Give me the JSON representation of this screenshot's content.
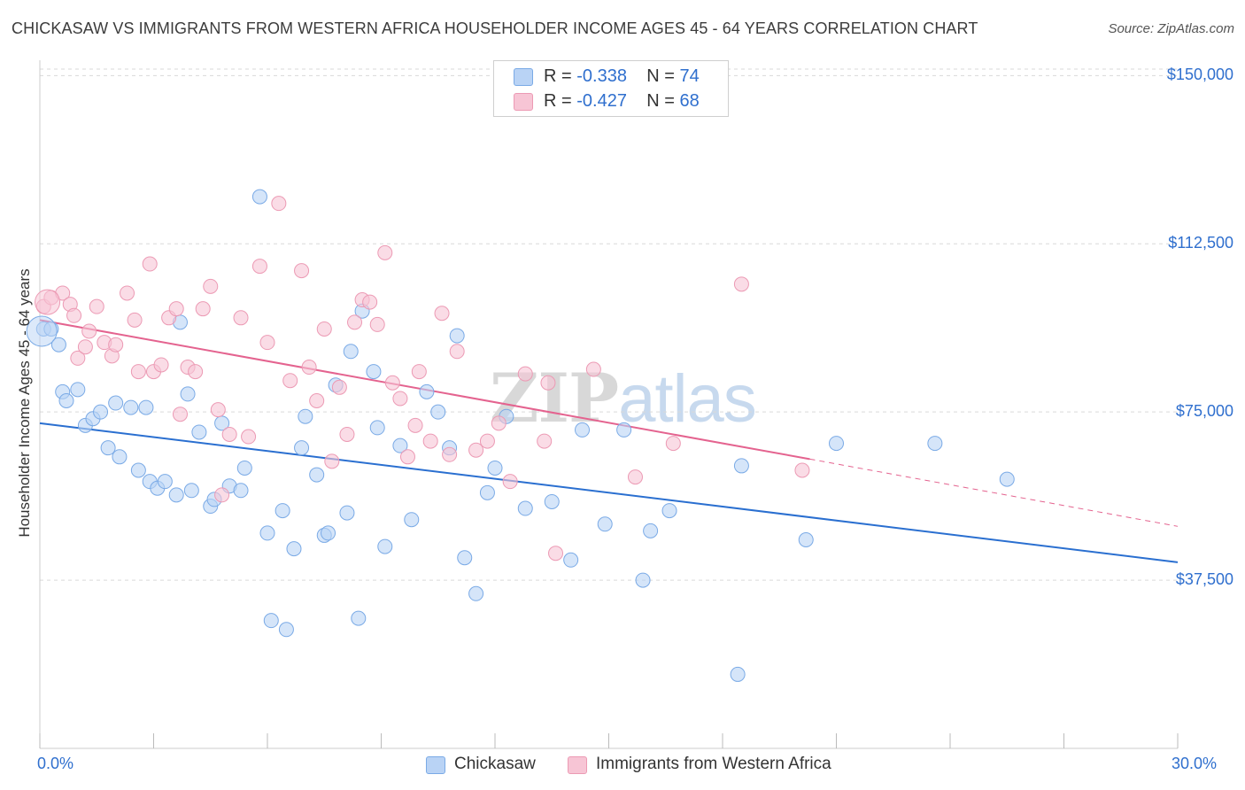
{
  "header": {
    "title": "CHICKASAW VS IMMIGRANTS FROM WESTERN AFRICA HOUSEHOLDER INCOME AGES 45 - 64 YEARS CORRELATION CHART",
    "source": "Source: ZipAtlas.com"
  },
  "watermark": {
    "zip": "ZIP",
    "atlas": "atlas"
  },
  "legend": {
    "series1": {
      "r_label": "R = ",
      "r_value": "-0.338",
      "n_label": "N = ",
      "n_value": "74"
    },
    "series2": {
      "r_label": "R = ",
      "r_value": "-0.427",
      "n_label": "N = ",
      "n_value": "68"
    }
  },
  "colors": {
    "chickasaw_fill": "#b9d3f5",
    "chickasaw_stroke": "#7aaae6",
    "chickasaw_line": "#2a6fd0",
    "immigrants_fill": "#f7c5d5",
    "immigrants_stroke": "#ec9ab4",
    "immigrants_line": "#e4638f",
    "axis_label": "#2f6fce",
    "grid": "#d9d9d9"
  },
  "chart_data": {
    "type": "scatter",
    "title": "CHICKASAW VS IMMIGRANTS FROM WESTERN AFRICA HOUSEHOLDER INCOME AGES 45 - 64 YEARS CORRELATION CHART",
    "xlabel": "",
    "ylabel": "Householder Income Ages 45 - 64 years",
    "xlim": [
      0,
      30
    ],
    "ylim": [
      0,
      155000
    ],
    "x_tick_labels": [
      "0.0%",
      "30.0%"
    ],
    "y_ticks": [
      37500,
      75000,
      112500,
      150000
    ],
    "y_tick_labels": [
      "$37,500",
      "$75,000",
      "$112,500",
      "$150,000"
    ],
    "grid": true,
    "legend_position": "top-center",
    "series": [
      {
        "name": "Chickasaw",
        "trend": {
          "x": [
            0,
            30
          ],
          "y": [
            72500,
            41500
          ]
        },
        "points": [
          [
            0.1,
            93500
          ],
          [
            0.3,
            93500
          ],
          [
            0.5,
            90000
          ],
          [
            0.6,
            79500
          ],
          [
            0.7,
            77500
          ],
          [
            1.0,
            80000
          ],
          [
            1.2,
            72000
          ],
          [
            1.4,
            73500
          ],
          [
            1.6,
            75000
          ],
          [
            1.8,
            67000
          ],
          [
            2.0,
            77000
          ],
          [
            2.1,
            65000
          ],
          [
            2.4,
            76000
          ],
          [
            2.6,
            62000
          ],
          [
            2.8,
            76000
          ],
          [
            2.9,
            59500
          ],
          [
            3.1,
            58000
          ],
          [
            3.3,
            59500
          ],
          [
            3.6,
            56500
          ],
          [
            3.7,
            95000
          ],
          [
            3.9,
            79000
          ],
          [
            4.0,
            57500
          ],
          [
            4.2,
            70500
          ],
          [
            4.5,
            54000
          ],
          [
            4.6,
            55500
          ],
          [
            4.8,
            72500
          ],
          [
            5.0,
            58500
          ],
          [
            5.3,
            57500
          ],
          [
            5.4,
            62500
          ],
          [
            5.8,
            123000
          ],
          [
            6.0,
            48000
          ],
          [
            6.1,
            28500
          ],
          [
            6.4,
            53000
          ],
          [
            6.5,
            26500
          ],
          [
            6.7,
            44500
          ],
          [
            7.0,
            74000
          ],
          [
            6.9,
            67000
          ],
          [
            7.3,
            61000
          ],
          [
            7.5,
            47500
          ],
          [
            7.6,
            48000
          ],
          [
            7.8,
            81000
          ],
          [
            8.1,
            52500
          ],
          [
            8.2,
            88500
          ],
          [
            8.4,
            29000
          ],
          [
            8.5,
            97500
          ],
          [
            8.8,
            84000
          ],
          [
            8.9,
            71500
          ],
          [
            9.1,
            45000
          ],
          [
            9.5,
            67500
          ],
          [
            9.8,
            51000
          ],
          [
            10.2,
            79500
          ],
          [
            10.5,
            75000
          ],
          [
            10.8,
            67000
          ],
          [
            11.0,
            92000
          ],
          [
            11.2,
            42500
          ],
          [
            11.5,
            34500
          ],
          [
            11.8,
            57000
          ],
          [
            12.0,
            62500
          ],
          [
            12.3,
            74000
          ],
          [
            12.8,
            53500
          ],
          [
            13.5,
            55000
          ],
          [
            14.0,
            42000
          ],
          [
            14.3,
            71000
          ],
          [
            14.9,
            50000
          ],
          [
            15.4,
            71000
          ],
          [
            15.9,
            37500
          ],
          [
            16.1,
            48500
          ],
          [
            16.6,
            53000
          ],
          [
            18.4,
            16500
          ],
          [
            18.5,
            63000
          ],
          [
            20.2,
            46500
          ],
          [
            21.0,
            68000
          ],
          [
            23.6,
            68000
          ],
          [
            25.5,
            60000
          ]
        ]
      },
      {
        "name": "Immigrants from Western Africa",
        "trend": {
          "x": [
            0,
            20.3
          ],
          "y": [
            95500,
            64500
          ]
        },
        "trend_dashed": {
          "x": [
            20.3,
            30
          ],
          "y": [
            64500,
            49500
          ]
        },
        "points": [
          [
            0.1,
            98500
          ],
          [
            0.3,
            100500
          ],
          [
            0.6,
            101500
          ],
          [
            0.8,
            99000
          ],
          [
            0.9,
            96500
          ],
          [
            1.0,
            87000
          ],
          [
            1.2,
            89500
          ],
          [
            1.3,
            93000
          ],
          [
            1.5,
            98500
          ],
          [
            1.7,
            90500
          ],
          [
            1.9,
            87500
          ],
          [
            2.0,
            90000
          ],
          [
            2.3,
            101500
          ],
          [
            2.5,
            95500
          ],
          [
            2.6,
            84000
          ],
          [
            2.9,
            108000
          ],
          [
            3.0,
            84000
          ],
          [
            3.2,
            85500
          ],
          [
            3.4,
            96000
          ],
          [
            3.6,
            98000
          ],
          [
            3.7,
            74500
          ],
          [
            3.9,
            85000
          ],
          [
            4.1,
            84000
          ],
          [
            4.3,
            98000
          ],
          [
            4.5,
            103000
          ],
          [
            4.7,
            75500
          ],
          [
            4.8,
            56500
          ],
          [
            5.0,
            70000
          ],
          [
            5.3,
            96000
          ],
          [
            5.5,
            69500
          ],
          [
            5.8,
            107500
          ],
          [
            6.0,
            90500
          ],
          [
            6.3,
            121500
          ],
          [
            6.6,
            82000
          ],
          [
            6.9,
            106500
          ],
          [
            7.1,
            85000
          ],
          [
            7.3,
            77500
          ],
          [
            7.5,
            93500
          ],
          [
            7.7,
            64000
          ],
          [
            7.9,
            80500
          ],
          [
            8.1,
            70000
          ],
          [
            8.3,
            95000
          ],
          [
            8.5,
            100000
          ],
          [
            8.7,
            99500
          ],
          [
            8.9,
            94500
          ],
          [
            9.1,
            110500
          ],
          [
            9.3,
            81500
          ],
          [
            9.5,
            78000
          ],
          [
            9.7,
            65000
          ],
          [
            9.9,
            72000
          ],
          [
            10.0,
            84000
          ],
          [
            10.3,
            68500
          ],
          [
            10.6,
            97000
          ],
          [
            10.8,
            65500
          ],
          [
            11.0,
            88500
          ],
          [
            11.5,
            66500
          ],
          [
            11.8,
            68500
          ],
          [
            12.1,
            72500
          ],
          [
            12.4,
            59500
          ],
          [
            12.8,
            83500
          ],
          [
            13.3,
            68500
          ],
          [
            13.4,
            81500
          ],
          [
            13.6,
            43500
          ],
          [
            14.6,
            84500
          ],
          [
            15.7,
            60500
          ],
          [
            16.7,
            68000
          ],
          [
            18.5,
            103500
          ],
          [
            20.1,
            62000
          ]
        ]
      }
    ]
  },
  "bottom_legend": {
    "series1": "Chickasaw",
    "series2": "Immigrants from Western Africa"
  }
}
